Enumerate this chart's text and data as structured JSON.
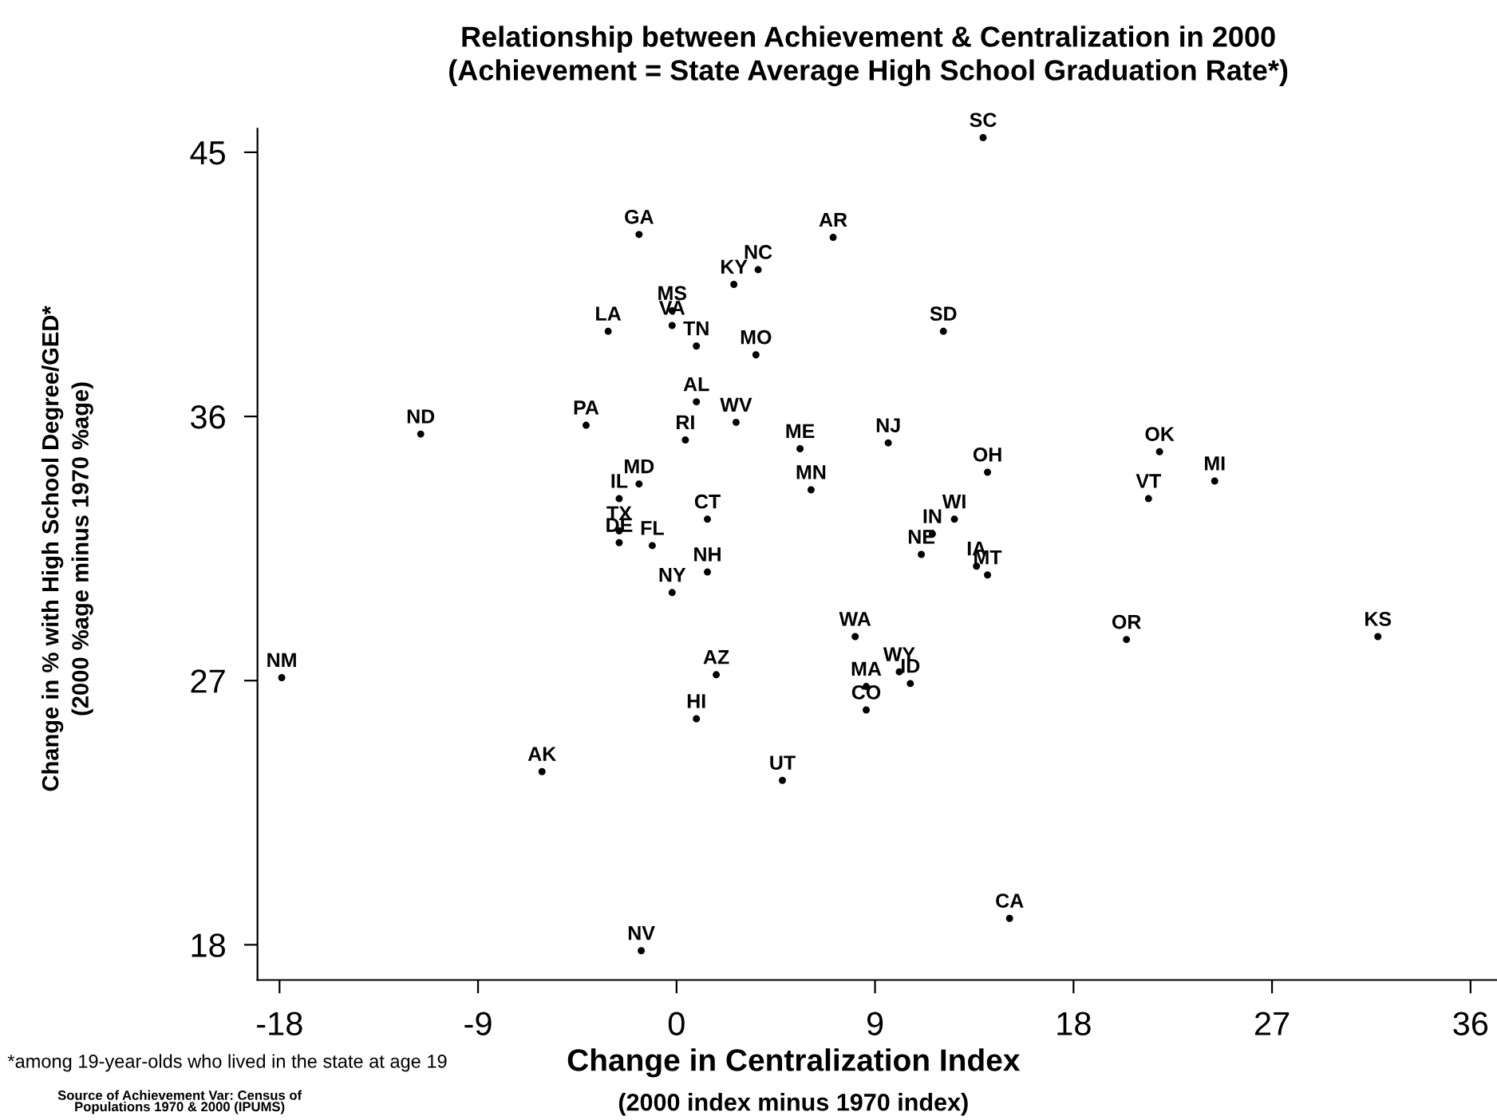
{
  "chart_data": {
    "type": "scatter",
    "title": "Relationship between Achievement & Centralization in 2000",
    "subtitle": "(Achievement = State Average High School Graduation Rate*)",
    "xlabel": "Change in Centralization Index\n(2000 index minus 1970 index)",
    "ylabel": "Change in % with High School Degree/GED*\n(2000 %age minus 1970 %age)",
    "xlim": [
      -19,
      37.2
    ],
    "ylim": [
      16.8,
      45.8
    ],
    "xticks": [
      -18,
      -9,
      0,
      9,
      18,
      27,
      36
    ],
    "yticks": [
      18,
      27,
      36,
      45
    ],
    "marker": "circle",
    "grid": false,
    "legend": false,
    "series": [
      {
        "color": "#000000",
        "x": [
          13.9,
          -1.7,
          7.1,
          3.7,
          2.6,
          -0.2,
          -0.2,
          -3.1,
          0.9,
          12.1,
          3.6,
          0.9,
          2.7,
          -11.6,
          -4.1,
          0.4,
          5.6,
          9.6,
          21.9,
          14.1,
          24.4,
          21.4,
          -1.7,
          6.1,
          -2.6,
          1.4,
          12.6,
          11.6,
          -2.6,
          -2.6,
          -1.1,
          11.1,
          13.6,
          14.1,
          1.4,
          -0.2,
          8.1,
          20.4,
          31.8,
          10.1,
          10.6,
          -17.9,
          1.8,
          8.6,
          8.6,
          0.9,
          -6.1,
          4.8,
          15.1,
          -1.6
        ],
        "values": [
          45.5,
          42.2,
          42.1,
          41.0,
          40.5,
          39.6,
          39.1,
          38.9,
          38.4,
          38.9,
          38.1,
          36.5,
          35.8,
          35.4,
          35.7,
          35.2,
          34.9,
          35.1,
          34.8,
          34.1,
          33.8,
          33.2,
          33.7,
          33.5,
          33.2,
          32.5,
          32.5,
          32.0,
          32.1,
          31.7,
          31.6,
          31.3,
          30.9,
          30.6,
          30.7,
          30.0,
          28.5,
          28.4,
          28.5,
          27.3,
          26.9,
          27.1,
          27.2,
          26.8,
          26.0,
          25.7,
          23.9,
          23.6,
          18.9,
          17.8
        ],
        "value_labels": [
          "SC",
          "GA",
          "AR",
          "NC",
          "KY",
          "MS",
          "VA",
          "LA",
          "TN",
          "SD",
          "MO",
          "AL",
          "WV",
          "ND",
          "PA",
          "RI",
          "ME",
          "NJ",
          "OK",
          "OH",
          "MI",
          "VT",
          "MD",
          "MN",
          "IL",
          "CT",
          "WI",
          "IN",
          "TX",
          "DE",
          "FL",
          "NE",
          "IA",
          "MT",
          "NH",
          "NY",
          "WA",
          "OR",
          "KS",
          "WY",
          "ID",
          "NM",
          "AZ",
          "MA",
          "CO",
          "HI",
          "AK",
          "UT",
          "CA",
          "NV"
        ]
      }
    ],
    "annotations": [
      "*among 19-year-olds who lived in the state at age 19",
      "Source of Achievement Var: Census of\nPopulations 1970 & 2000 (IPUMS)"
    ]
  }
}
